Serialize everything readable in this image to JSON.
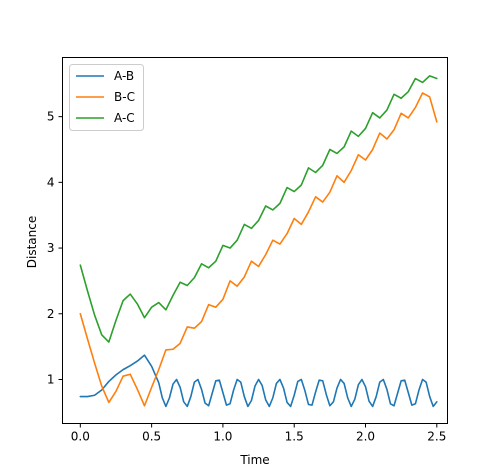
{
  "chart_data": {
    "type": "line",
    "title": "",
    "xlabel": "Time",
    "ylabel": "Distance",
    "xlim": [
      -0.125,
      2.575
    ],
    "ylim": [
      0.33,
      5.9
    ],
    "xticks": [
      0.0,
      0.5,
      1.0,
      1.5,
      2.0,
      2.5
    ],
    "xtick_labels": [
      "0.0",
      "0.5",
      "1.0",
      "1.5",
      "2.0",
      "2.5"
    ],
    "yticks": [
      1,
      2,
      3,
      4,
      5
    ],
    "ytick_labels": [
      "1",
      "2",
      "3",
      "4",
      "5"
    ],
    "grid": false,
    "legend_position": "upper-left",
    "series": [
      {
        "name": "A-B",
        "color": "#1f77b4",
        "x": [
          0.0,
          0.05,
          0.1,
          0.15,
          0.2,
          0.25,
          0.3,
          0.35,
          0.4,
          0.45,
          0.5,
          0.55,
          0.575,
          0.6,
          0.625,
          0.65,
          0.675,
          0.7,
          0.725,
          0.75,
          0.775,
          0.8,
          0.825,
          0.85,
          0.875,
          0.9,
          0.925,
          0.95,
          0.975,
          1.0,
          1.025,
          1.05,
          1.075,
          1.1,
          1.125,
          1.15,
          1.175,
          1.2,
          1.225,
          1.25,
          1.275,
          1.3,
          1.325,
          1.35,
          1.375,
          1.4,
          1.425,
          1.45,
          1.475,
          1.5,
          1.525,
          1.55,
          1.575,
          1.6,
          1.625,
          1.65,
          1.675,
          1.7,
          1.725,
          1.75,
          1.775,
          1.8,
          1.825,
          1.85,
          1.875,
          1.9,
          1.925,
          1.95,
          1.975,
          2.0,
          2.025,
          2.05,
          2.075,
          2.1,
          2.125,
          2.15,
          2.175,
          2.2,
          2.225,
          2.25,
          2.275,
          2.3,
          2.325,
          2.35,
          2.375,
          2.4,
          2.425,
          2.45,
          2.475,
          2.5
        ],
        "y": [
          0.74,
          0.74,
          0.76,
          0.84,
          0.97,
          1.07,
          1.15,
          1.21,
          1.28,
          1.37,
          1.2,
          0.95,
          0.72,
          0.59,
          0.72,
          0.93,
          1.0,
          0.88,
          0.66,
          0.59,
          0.74,
          0.96,
          1.0,
          0.85,
          0.64,
          0.6,
          0.79,
          0.98,
          0.99,
          0.8,
          0.61,
          0.63,
          0.84,
          1.0,
          0.96,
          0.74,
          0.59,
          0.68,
          0.9,
          1.0,
          0.91,
          0.69,
          0.59,
          0.72,
          0.94,
          1.0,
          0.87,
          0.65,
          0.59,
          0.76,
          0.97,
          1.0,
          0.83,
          0.62,
          0.61,
          0.81,
          0.99,
          0.98,
          0.77,
          0.6,
          0.66,
          0.87,
          1.0,
          0.94,
          0.72,
          0.59,
          0.7,
          0.92,
          1.0,
          0.89,
          0.67,
          0.59,
          0.74,
          0.96,
          1.0,
          0.85,
          0.63,
          0.6,
          0.79,
          0.98,
          0.99,
          0.8,
          0.61,
          0.63,
          0.84,
          1.0,
          0.96,
          0.74,
          0.59,
          0.66
        ]
      },
      {
        "name": "B-C",
        "color": "#ff7f0e",
        "x": [
          0.0,
          0.05,
          0.1,
          0.15,
          0.2,
          0.25,
          0.3,
          0.35,
          0.4,
          0.45,
          0.5,
          0.55,
          0.6,
          0.65,
          0.7,
          0.75,
          0.8,
          0.85,
          0.9,
          0.95,
          1.0,
          1.05,
          1.1,
          1.15,
          1.2,
          1.25,
          1.3,
          1.35,
          1.4,
          1.45,
          1.5,
          1.55,
          1.6,
          1.65,
          1.7,
          1.75,
          1.8,
          1.85,
          1.9,
          1.95,
          2.0,
          2.05,
          2.1,
          2.15,
          2.2,
          2.25,
          2.3,
          2.35,
          2.4,
          2.45,
          2.5
        ],
        "y": [
          2.0,
          1.62,
          1.25,
          0.9,
          0.65,
          0.82,
          1.05,
          1.08,
          0.85,
          0.6,
          0.88,
          1.15,
          1.45,
          1.46,
          1.55,
          1.8,
          1.78,
          1.88,
          2.14,
          2.1,
          2.22,
          2.5,
          2.42,
          2.56,
          2.8,
          2.72,
          2.9,
          3.12,
          3.06,
          3.22,
          3.45,
          3.36,
          3.55,
          3.78,
          3.7,
          3.85,
          4.1,
          4.0,
          4.18,
          4.42,
          4.34,
          4.5,
          4.75,
          4.66,
          4.8,
          5.05,
          4.98,
          5.14,
          5.36,
          5.3,
          4.92
        ]
      },
      {
        "name": "A-C",
        "color": "#2ca02c",
        "x": [
          0.0,
          0.05,
          0.1,
          0.15,
          0.2,
          0.25,
          0.3,
          0.35,
          0.4,
          0.45,
          0.5,
          0.55,
          0.6,
          0.65,
          0.7,
          0.75,
          0.8,
          0.85,
          0.9,
          0.95,
          1.0,
          1.05,
          1.1,
          1.15,
          1.2,
          1.25,
          1.3,
          1.35,
          1.4,
          1.45,
          1.5,
          1.55,
          1.6,
          1.65,
          1.7,
          1.75,
          1.8,
          1.85,
          1.9,
          1.95,
          2.0,
          2.05,
          2.1,
          2.15,
          2.2,
          2.25,
          2.3,
          2.35,
          2.4,
          2.45,
          2.5
        ],
        "y": [
          2.74,
          2.35,
          1.98,
          1.68,
          1.57,
          1.9,
          2.2,
          2.3,
          2.15,
          1.94,
          2.1,
          2.17,
          2.06,
          2.28,
          2.48,
          2.43,
          2.55,
          2.76,
          2.7,
          2.8,
          3.04,
          3.0,
          3.12,
          3.36,
          3.3,
          3.42,
          3.64,
          3.58,
          3.68,
          3.92,
          3.86,
          3.96,
          4.22,
          4.15,
          4.26,
          4.5,
          4.44,
          4.54,
          4.78,
          4.7,
          4.82,
          5.06,
          4.98,
          5.1,
          5.34,
          5.28,
          5.38,
          5.58,
          5.52,
          5.62,
          5.58
        ]
      }
    ]
  }
}
